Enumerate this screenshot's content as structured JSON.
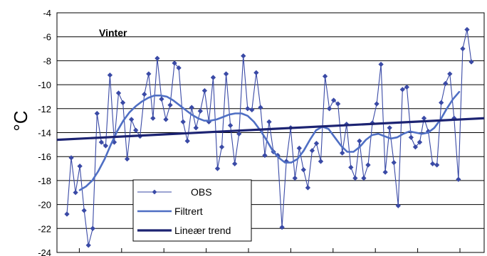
{
  "chart_data": {
    "type": "line",
    "title": "Vinter",
    "ylabel": "°C",
    "xlabel": "",
    "ylim": [
      -24,
      -4
    ],
    "yticks": [
      -4,
      -6,
      -8,
      -10,
      -12,
      -14,
      -16,
      -18,
      -20,
      -22,
      -24
    ],
    "grid": true,
    "legend_position": "bottom-left",
    "colors": {
      "obs": "#3a4aa6",
      "filtered": "#4f6fc4",
      "trend": "#1c2372"
    },
    "series": [
      {
        "name": "OBS",
        "values": [
          -20.8,
          -16.1,
          -19.0,
          -16.8,
          -20.5,
          -23.4,
          -22.0,
          -12.4,
          -14.8,
          -15.1,
          -9.2,
          -14.8,
          -10.7,
          -11.5,
          -16.2,
          -12.9,
          -13.8,
          -14.3,
          -10.8,
          -9.1,
          -12.8,
          -7.8,
          -11.2,
          -12.9,
          -11.7,
          -8.2,
          -8.6,
          -13.1,
          -14.7,
          -11.9,
          -13.6,
          -12.2,
          -10.5,
          -13.1,
          -9.4,
          -17.0,
          -15.2,
          -9.1,
          -13.4,
          -16.6,
          -14.1,
          -7.6,
          -12.0,
          -12.1,
          -9.0,
          -11.9,
          -15.9,
          -13.1,
          -15.6,
          -15.9,
          -21.9,
          -16.4,
          -13.6,
          -17.8,
          -15.3,
          -17.1,
          -18.6,
          -15.5,
          -14.9,
          -16.4,
          -9.3,
          -12.0,
          -11.3,
          -11.6,
          -15.7,
          -13.3,
          -16.9,
          -17.8,
          -14.7,
          -17.8,
          -16.7,
          -13.2,
          -11.6,
          -8.3,
          -17.3,
          -13.6,
          -16.5,
          -20.1,
          -10.4,
          -10.2,
          -14.4,
          -15.2,
          -14.8,
          -12.8,
          -13.9,
          -16.6,
          -16.7,
          -11.5,
          -9.9,
          -9.1,
          -12.8,
          -17.9,
          -7.0,
          -5.4,
          -8.1
        ]
      },
      {
        "name": "Filtrert",
        "values": [
          -18.8,
          -18.5,
          -18.0,
          -17.2,
          -16.2,
          -15.0,
          -13.9,
          -13.0,
          -12.3,
          -11.8,
          -11.4,
          -11.1,
          -10.9,
          -10.9,
          -11.0,
          -11.3,
          -11.7,
          -12.1,
          -12.5,
          -12.8,
          -13.0,
          -13.0,
          -12.9,
          -12.7,
          -12.5,
          -12.4,
          -12.4,
          -12.6,
          -13.1,
          -13.8,
          -14.6,
          -15.5,
          -16.1,
          -16.5,
          -16.5,
          -16.2,
          -15.5,
          -14.6,
          -13.8,
          -13.5,
          -13.7,
          -14.4,
          -15.1,
          -15.6,
          -15.6,
          -15.2,
          -14.6,
          -14.2,
          -14.1,
          -14.3,
          -14.5,
          -14.4,
          -14.1,
          -13.9,
          -14.0,
          -14.1,
          -14.0,
          -13.6,
          -12.9,
          -12.0,
          -11.2,
          -10.6
        ]
      },
      {
        "name": "Lineær trend",
        "values": [
          -14.6,
          -12.8
        ]
      }
    ]
  }
}
